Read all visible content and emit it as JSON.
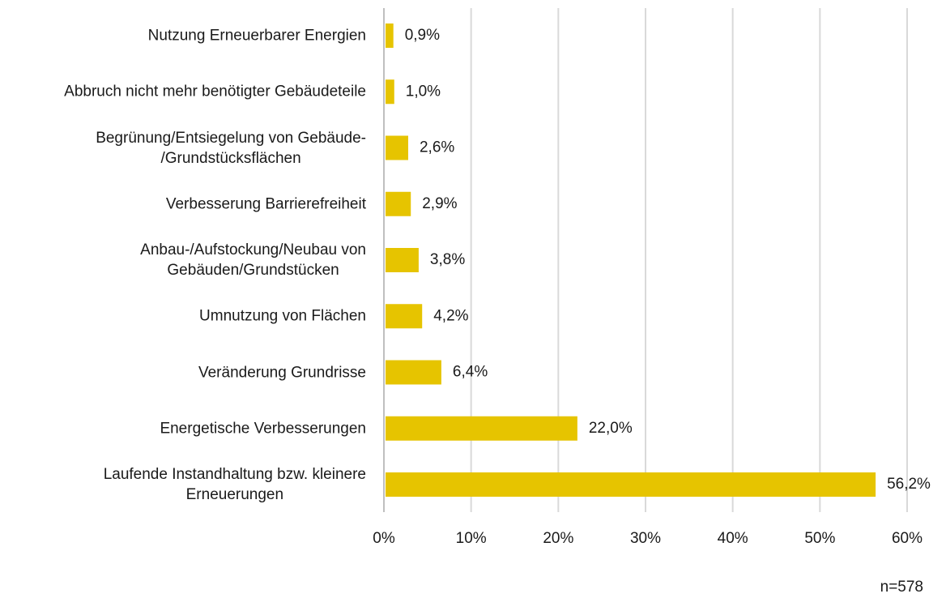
{
  "chart_data": {
    "type": "bar",
    "orientation": "horizontal",
    "categories": [
      "Nutzung Erneuerbarer Energien",
      "Abbruch nicht mehr benötigter Gebäudeteile",
      "Begrünung/Entsiegelung von Gebäude-\n/Grundstücksflächen",
      "Verbesserung Barrierefreiheit",
      "Anbau-/Aufstockung/Neubau von\nGebäuden/Grundstücken",
      "Umnutzung von Flächen",
      "Veränderung Grundrisse",
      "Energetische Verbesserungen",
      "Laufende Instandhaltung bzw. kleinere\nErneuerungen"
    ],
    "values": [
      0.9,
      1.0,
      2.6,
      2.9,
      3.8,
      4.2,
      6.4,
      22.0,
      56.2
    ],
    "value_labels": [
      "0,9%",
      "1,0%",
      "2,6%",
      "2,9%",
      "3,8%",
      "4,2%",
      "6,4%",
      "22,0%",
      "56,2%"
    ],
    "color": "#e6c400",
    "xlim": [
      0,
      60
    ],
    "xticks": [
      {
        "value": 0,
        "label": "0%"
      },
      {
        "value": 10,
        "label": "10%"
      },
      {
        "value": 20,
        "label": "20%"
      },
      {
        "value": 30,
        "label": "30%"
      },
      {
        "value": 40,
        "label": "40%"
      },
      {
        "value": 50,
        "label": "50%"
      },
      {
        "value": 60,
        "label": "60%"
      }
    ],
    "grid": true,
    "note": "n=578"
  }
}
